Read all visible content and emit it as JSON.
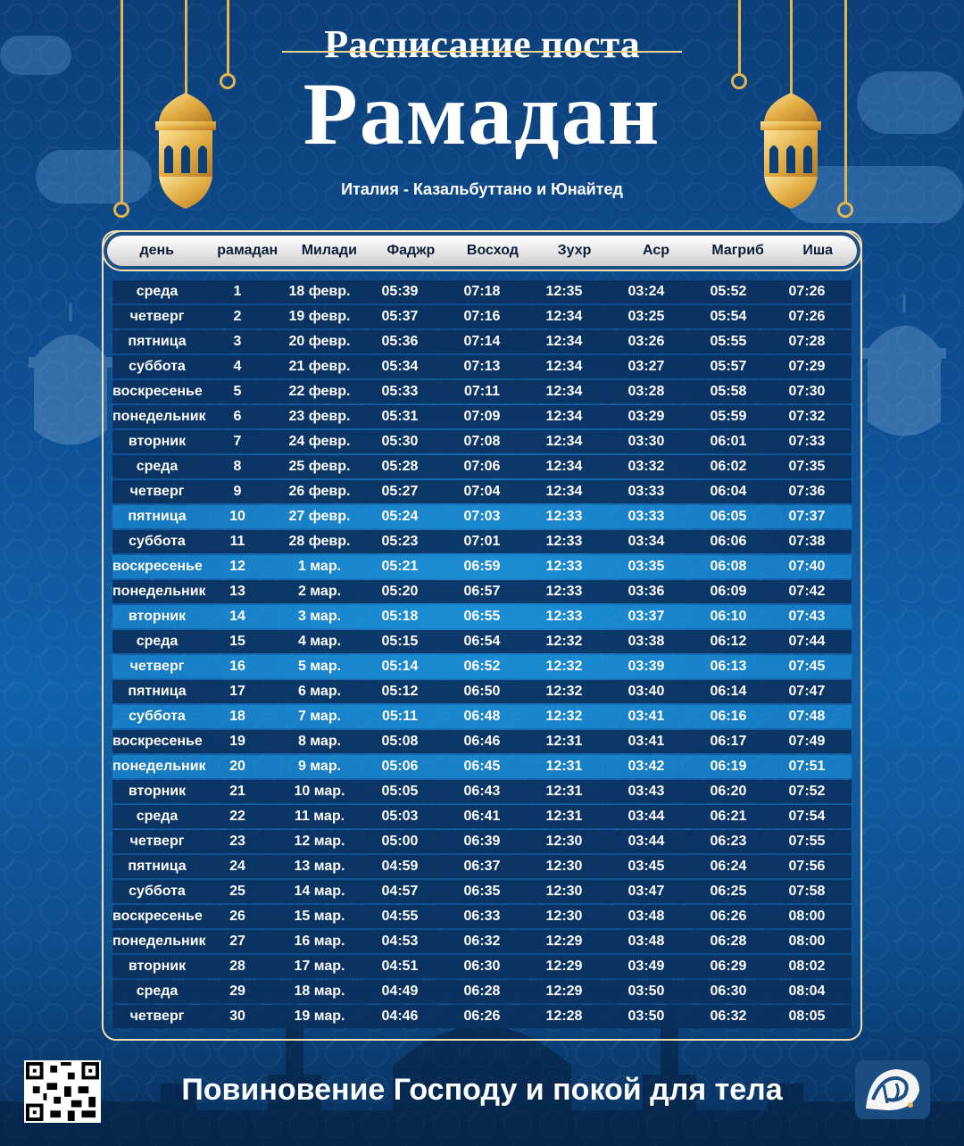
{
  "header": {
    "title_small": "Расписание поста",
    "title_big": "Рамадан",
    "location": "Италия - Казальбуттано и Юнайтед"
  },
  "table": {
    "columns": [
      "день",
      "рамадан",
      "Милади",
      "Фаджр",
      "Восход",
      "Зухр",
      "Аср",
      "Магриб",
      "Иша"
    ],
    "rows": [
      [
        "среда",
        "1",
        "18 февр.",
        "05:39",
        "07:18",
        "12:35",
        "03:24",
        "05:52",
        "07:26"
      ],
      [
        "четверг",
        "2",
        "19 февр.",
        "05:37",
        "07:16",
        "12:34",
        "03:25",
        "05:54",
        "07:26"
      ],
      [
        "пятница",
        "3",
        "20 февр.",
        "05:36",
        "07:14",
        "12:34",
        "03:26",
        "05:55",
        "07:28"
      ],
      [
        "суббота",
        "4",
        "21 февр.",
        "05:34",
        "07:13",
        "12:34",
        "03:27",
        "05:57",
        "07:29"
      ],
      [
        "воскресенье",
        "5",
        "22 февр.",
        "05:33",
        "07:11",
        "12:34",
        "03:28",
        "05:58",
        "07:30"
      ],
      [
        "понедельник",
        "6",
        "23 февр.",
        "05:31",
        "07:09",
        "12:34",
        "03:29",
        "05:59",
        "07:32"
      ],
      [
        "вторник",
        "7",
        "24 февр.",
        "05:30",
        "07:08",
        "12:34",
        "03:30",
        "06:01",
        "07:33"
      ],
      [
        "среда",
        "8",
        "25 февр.",
        "05:28",
        "07:06",
        "12:34",
        "03:32",
        "06:02",
        "07:35"
      ],
      [
        "четверг",
        "9",
        "26 февр.",
        "05:27",
        "07:04",
        "12:34",
        "03:33",
        "06:04",
        "07:36"
      ],
      [
        "пятница",
        "10",
        "27 февр.",
        "05:24",
        "07:03",
        "12:33",
        "03:33",
        "06:05",
        "07:37"
      ],
      [
        "суббота",
        "11",
        "28 февр.",
        "05:23",
        "07:01",
        "12:33",
        "03:34",
        "06:06",
        "07:38"
      ],
      [
        "воскресенье",
        "12",
        "1 мар.",
        "05:21",
        "06:59",
        "12:33",
        "03:35",
        "06:08",
        "07:40"
      ],
      [
        "понедельник",
        "13",
        "2 мар.",
        "05:20",
        "06:57",
        "12:33",
        "03:36",
        "06:09",
        "07:42"
      ],
      [
        "вторник",
        "14",
        "3 мар.",
        "05:18",
        "06:55",
        "12:33",
        "03:37",
        "06:10",
        "07:43"
      ],
      [
        "среда",
        "15",
        "4 мар.",
        "05:15",
        "06:54",
        "12:32",
        "03:38",
        "06:12",
        "07:44"
      ],
      [
        "четверг",
        "16",
        "5 мар.",
        "05:14",
        "06:52",
        "12:32",
        "03:39",
        "06:13",
        "07:45"
      ],
      [
        "пятница",
        "17",
        "6 мар.",
        "05:12",
        "06:50",
        "12:32",
        "03:40",
        "06:14",
        "07:47"
      ],
      [
        "суббота",
        "18",
        "7 мар.",
        "05:11",
        "06:48",
        "12:32",
        "03:41",
        "06:16",
        "07:48"
      ],
      [
        "воскресенье",
        "19",
        "8 мар.",
        "05:08",
        "06:46",
        "12:31",
        "03:41",
        "06:17",
        "07:49"
      ],
      [
        "понедельник",
        "20",
        "9 мар.",
        "05:06",
        "06:45",
        "12:31",
        "03:42",
        "06:19",
        "07:51"
      ],
      [
        "вторник",
        "21",
        "10 мар.",
        "05:05",
        "06:43",
        "12:31",
        "03:43",
        "06:20",
        "07:52"
      ],
      [
        "среда",
        "22",
        "11 мар.",
        "05:03",
        "06:41",
        "12:31",
        "03:44",
        "06:21",
        "07:54"
      ],
      [
        "четверг",
        "23",
        "12 мар.",
        "05:00",
        "06:39",
        "12:30",
        "03:44",
        "06:23",
        "07:55"
      ],
      [
        "пятница",
        "24",
        "13 мар.",
        "04:59",
        "06:37",
        "12:30",
        "03:45",
        "06:24",
        "07:56"
      ],
      [
        "суббота",
        "25",
        "14 мар.",
        "04:57",
        "06:35",
        "12:30",
        "03:47",
        "06:25",
        "07:58"
      ],
      [
        "воскресенье",
        "26",
        "15 мар.",
        "04:55",
        "06:33",
        "12:30",
        "03:48",
        "06:26",
        "08:00"
      ],
      [
        "понедельник",
        "27",
        "16 мар.",
        "04:53",
        "06:32",
        "12:29",
        "03:48",
        "06:28",
        "08:00"
      ],
      [
        "вторник",
        "28",
        "17 мар.",
        "04:51",
        "06:30",
        "12:29",
        "03:49",
        "06:29",
        "08:02"
      ],
      [
        "среда",
        "29",
        "18 мар.",
        "04:49",
        "06:28",
        "12:29",
        "03:50",
        "06:30",
        "08:04"
      ],
      [
        "четверг",
        "30",
        "19 мар.",
        "04:46",
        "06:26",
        "12:28",
        "03:50",
        "06:32",
        "08:05"
      ]
    ]
  },
  "footer": {
    "slogan": "Повиновение Господу и покой для тела"
  },
  "icons": {
    "lantern": "lantern-icon",
    "qr": "qr-code-icon",
    "logo": "app-logo-icon"
  },
  "colors": {
    "accent_gold": "#e5b64f",
    "frame": "#f4dfb4",
    "row_dark": "#0a305c",
    "row_light": "#1c96dc",
    "background": "#0e4f93"
  }
}
